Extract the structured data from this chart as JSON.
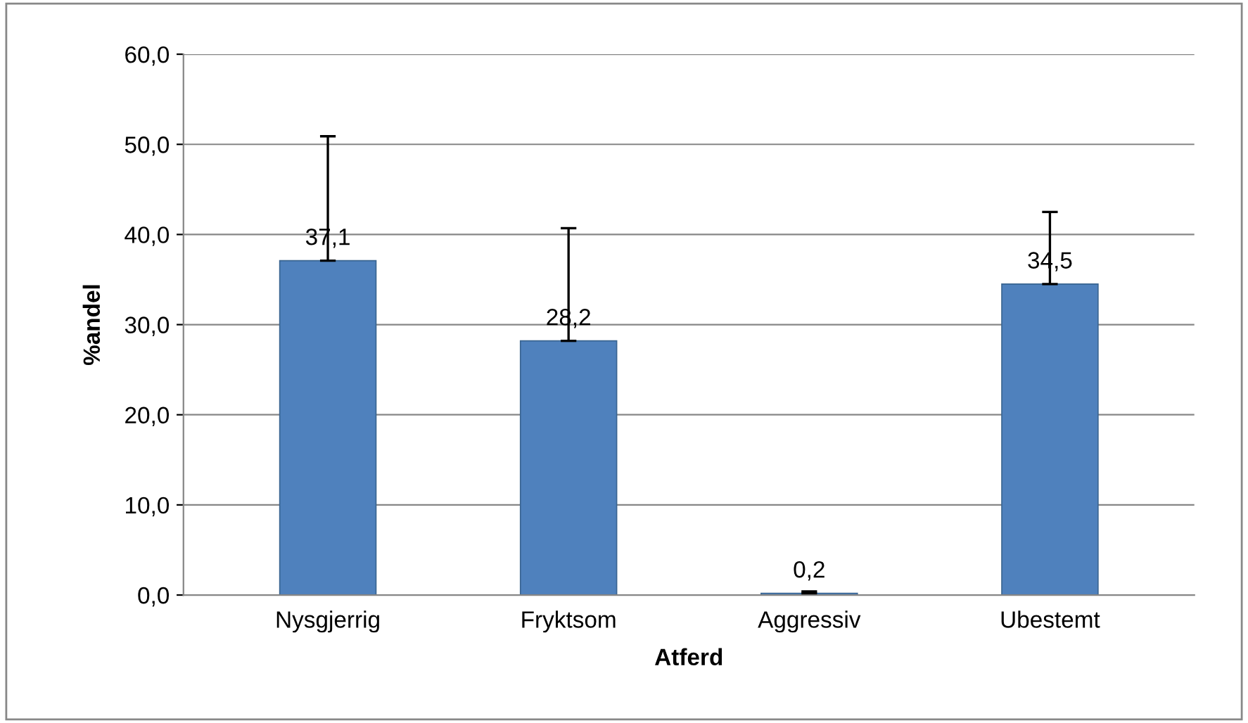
{
  "chart_data": {
    "type": "bar",
    "xlabel": "Atferd",
    "ylabel": "%andel",
    "categories": [
      "Nysgjerrig",
      "Fryktsom",
      "Aggressiv",
      "Ubestemt"
    ],
    "values": [
      37.1,
      28.2,
      0.2,
      34.5
    ],
    "value_labels": [
      "37,1",
      "28,2",
      "0,2",
      "34,5"
    ],
    "errors": [
      [
        37.1,
        50.9
      ],
      [
        28.2,
        40.7
      ],
      [
        0.2,
        0.4
      ],
      [
        34.5,
        42.5
      ]
    ],
    "color": "#4f81bd",
    "ylim": [
      0,
      60
    ],
    "yticks": [
      {
        "value": 0,
        "label": "0,0"
      },
      {
        "value": 10,
        "label": "10,0"
      },
      {
        "value": 20,
        "label": "20,0"
      },
      {
        "value": 30,
        "label": "30,0"
      },
      {
        "value": 40,
        "label": "40,0"
      },
      {
        "value": 50,
        "label": "50,0"
      },
      {
        "value": 60,
        "label": "60,0"
      }
    ],
    "grid": "y",
    "legend": false
  }
}
